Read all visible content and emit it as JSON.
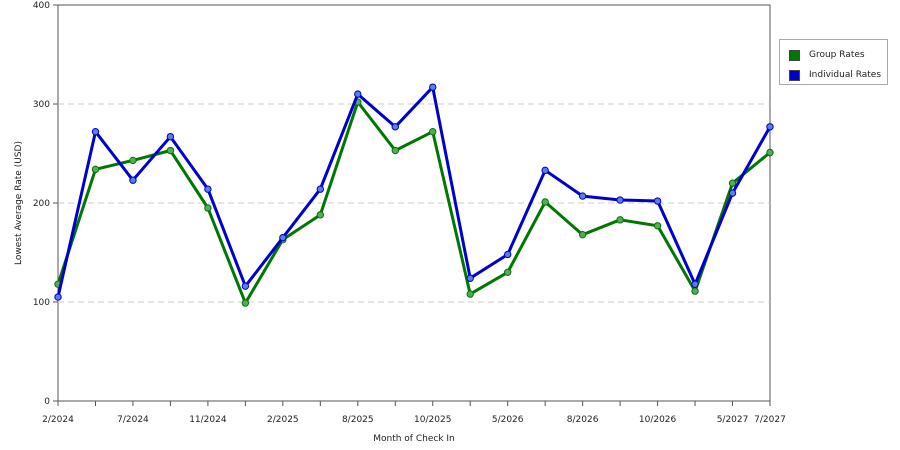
{
  "chart_data": {
    "type": "line",
    "xlabel": "Month of Check In",
    "ylabel": "Lowest Average Rate (USD)",
    "ylim": [
      0,
      400
    ],
    "yticks": [
      0,
      100,
      200,
      300,
      400
    ],
    "grid": "horizontal-dashed",
    "legend_position": "top-right",
    "x_tick_labels": [
      "2/2024",
      "7/2024",
      "11/2024",
      "2/2025",
      "8/2025",
      "10/2025",
      "5/2026",
      "8/2026",
      "10/2026",
      "5/2027",
      "7/2027"
    ],
    "series": [
      {
        "name": "Group Rates",
        "color": "#007700",
        "values": [
          118,
          234,
          243,
          253,
          195,
          99,
          163,
          188,
          302,
          253,
          272,
          108,
          130,
          201,
          168,
          183,
          177,
          111,
          220,
          251
        ]
      },
      {
        "name": "Individual Rates",
        "color": "#0000cc",
        "values": [
          105,
          272,
          223,
          267,
          214,
          116,
          165,
          214,
          310,
          277,
          317,
          124,
          148,
          233,
          207,
          203,
          202,
          118,
          210,
          277
        ]
      }
    ]
  }
}
